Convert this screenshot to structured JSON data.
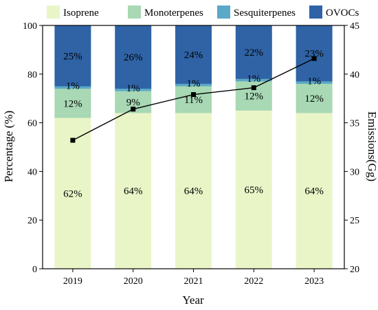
{
  "chart_data": {
    "type": "bar",
    "stacked": true,
    "xlabel": "Year",
    "ylabel": "Percentage (%)",
    "y2label": "Emissions(Gg)",
    "categories": [
      "2019",
      "2020",
      "2021",
      "2022",
      "2023"
    ],
    "ylim": [
      0,
      100
    ],
    "yticks": [
      0,
      20,
      40,
      60,
      80,
      100
    ],
    "y2lim": [
      20,
      45
    ],
    "y2ticks": [
      20,
      25,
      30,
      35,
      40,
      45
    ],
    "legend_position": "top",
    "grid": false,
    "series": [
      {
        "name": "Isoprene",
        "color": "#e9f5c7",
        "values": [
          62,
          64,
          64,
          65,
          64
        ],
        "labels": [
          "62%",
          "64%",
          "64%",
          "65%",
          "64%"
        ]
      },
      {
        "name": "Monoterpenes",
        "color": "#a8d8b4",
        "values": [
          12,
          9,
          11,
          12,
          12
        ],
        "labels": [
          "12%",
          "9%",
          "11%",
          "12%",
          "12%"
        ]
      },
      {
        "name": "Sesquiterpenes",
        "color": "#5aa9c6",
        "values": [
          1,
          1,
          1,
          1,
          1
        ],
        "labels": [
          "1%",
          "1%",
          "1%",
          "1%",
          "1%"
        ]
      },
      {
        "name": "OVOCs",
        "color": "#2f63a6",
        "values": [
          25,
          26,
          24,
          22,
          23
        ],
        "labels": [
          "25%",
          "26%",
          "24%",
          "22%",
          "23%"
        ]
      }
    ],
    "line": {
      "axis": "right",
      "color": "#000000",
      "values": [
        33.2,
        36.4,
        37.9,
        38.6,
        41.6
      ]
    }
  }
}
